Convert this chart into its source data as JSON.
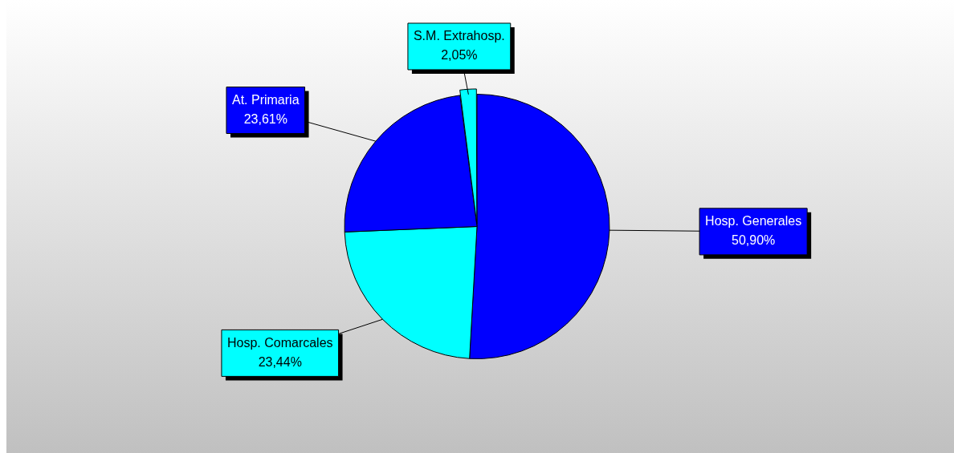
{
  "chart_data": {
    "type": "pie",
    "categories": [
      "Hosp. Generales",
      "Hosp. Comarcales",
      "At. Primaria",
      "S.M. Extrahosp."
    ],
    "values": [
      50.9,
      23.44,
      23.61,
      2.05
    ],
    "colors": [
      "#0000ff",
      "#00ffff",
      "#0000ff",
      "#00ffff"
    ],
    "value_labels": [
      "50,90%",
      "23,44%",
      "23,61%",
      "2,05%"
    ],
    "legend": false
  }
}
